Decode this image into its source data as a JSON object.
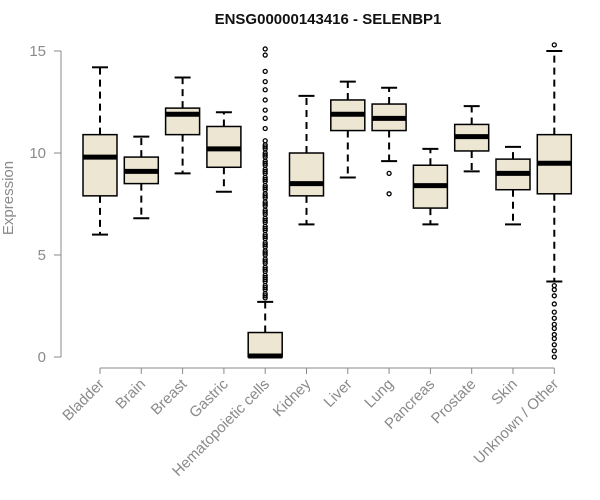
{
  "chart_data": {
    "type": "boxplot",
    "title": "ENSG00000143416 - SELENBP1",
    "xlabel": "",
    "ylabel": "Expression",
    "ylim": [
      0,
      15
    ],
    "yticks": [
      0,
      5,
      10,
      15
    ],
    "grid": false,
    "legend": "none",
    "colors": {
      "box_fill": "#ede6d2",
      "box_stroke": "#000000",
      "median": "#000000",
      "axis": "#8a8a8a",
      "title": "#111111"
    },
    "categories": [
      "Bladder",
      "Brain",
      "Breast",
      "Gastric",
      "Hematopoietic cells",
      "Kidney",
      "Liver",
      "Lung",
      "Pancreas",
      "Prostate",
      "Skin",
      "Unknown / Other"
    ],
    "boxes": [
      {
        "category": "Bladder",
        "whisker_low": 6.0,
        "q1": 7.9,
        "median": 9.8,
        "q3": 10.9,
        "whisker_high": 14.2,
        "outliers": []
      },
      {
        "category": "Brain",
        "whisker_low": 6.8,
        "q1": 8.5,
        "median": 9.1,
        "q3": 9.8,
        "whisker_high": 10.8,
        "outliers": []
      },
      {
        "category": "Breast",
        "whisker_low": 9.0,
        "q1": 10.9,
        "median": 11.9,
        "q3": 12.2,
        "whisker_high": 13.7,
        "outliers": []
      },
      {
        "category": "Gastric",
        "whisker_low": 8.1,
        "q1": 9.3,
        "median": 10.2,
        "q3": 11.3,
        "whisker_high": 12.0,
        "outliers": []
      },
      {
        "category": "Hematopoietic cells",
        "whisker_low": 0.0,
        "q1": 0.0,
        "median": 0.05,
        "q3": 1.2,
        "whisker_high": 2.7,
        "outliers": [
          2.9,
          3.0,
          3.1,
          3.3,
          3.4,
          3.5,
          3.7,
          3.8,
          3.9,
          4.0,
          4.2,
          4.3,
          4.4,
          4.6,
          4.7,
          4.8,
          5.0,
          5.1,
          5.2,
          5.4,
          5.5,
          5.6,
          5.8,
          5.9,
          6.0,
          6.2,
          6.3,
          6.4,
          6.6,
          6.7,
          6.8,
          7.0,
          7.1,
          7.2,
          7.4,
          7.5,
          7.6,
          7.8,
          7.9,
          8.0,
          8.2,
          8.3,
          8.4,
          8.6,
          8.7,
          8.8,
          9.0,
          9.1,
          9.2,
          9.4,
          9.5,
          9.6,
          9.8,
          9.9,
          10.0,
          10.2,
          10.3,
          10.4,
          10.6,
          11.2,
          11.7,
          12.1,
          12.6,
          13.1,
          13.5,
          14.0,
          14.8,
          15.1
        ]
      },
      {
        "category": "Kidney",
        "whisker_low": 6.5,
        "q1": 7.9,
        "median": 8.5,
        "q3": 10.0,
        "whisker_high": 12.8,
        "outliers": []
      },
      {
        "category": "Liver",
        "whisker_low": 8.8,
        "q1": 11.1,
        "median": 11.9,
        "q3": 12.6,
        "whisker_high": 13.5,
        "outliers": []
      },
      {
        "category": "Lung",
        "whisker_low": 9.6,
        "q1": 11.1,
        "median": 11.7,
        "q3": 12.4,
        "whisker_high": 13.2,
        "outliers": [
          8.0,
          9.0
        ]
      },
      {
        "category": "Pancreas",
        "whisker_low": 6.5,
        "q1": 7.3,
        "median": 8.4,
        "q3": 9.4,
        "whisker_high": 10.2,
        "outliers": []
      },
      {
        "category": "Prostate",
        "whisker_low": 9.1,
        "q1": 10.1,
        "median": 10.8,
        "q3": 11.4,
        "whisker_high": 12.3,
        "outliers": []
      },
      {
        "category": "Skin",
        "whisker_low": 6.5,
        "q1": 8.2,
        "median": 9.0,
        "q3": 9.7,
        "whisker_high": 10.3,
        "outliers": []
      },
      {
        "category": "Unknown / Other",
        "whisker_low": 3.7,
        "q1": 8.0,
        "median": 9.5,
        "q3": 10.9,
        "whisker_high": 15.0,
        "outliers": [
          0.0,
          0.3,
          0.6,
          0.9,
          1.1,
          1.4,
          1.6,
          1.9,
          2.2,
          2.6,
          3.0,
          3.3,
          3.5,
          15.3
        ]
      }
    ]
  }
}
